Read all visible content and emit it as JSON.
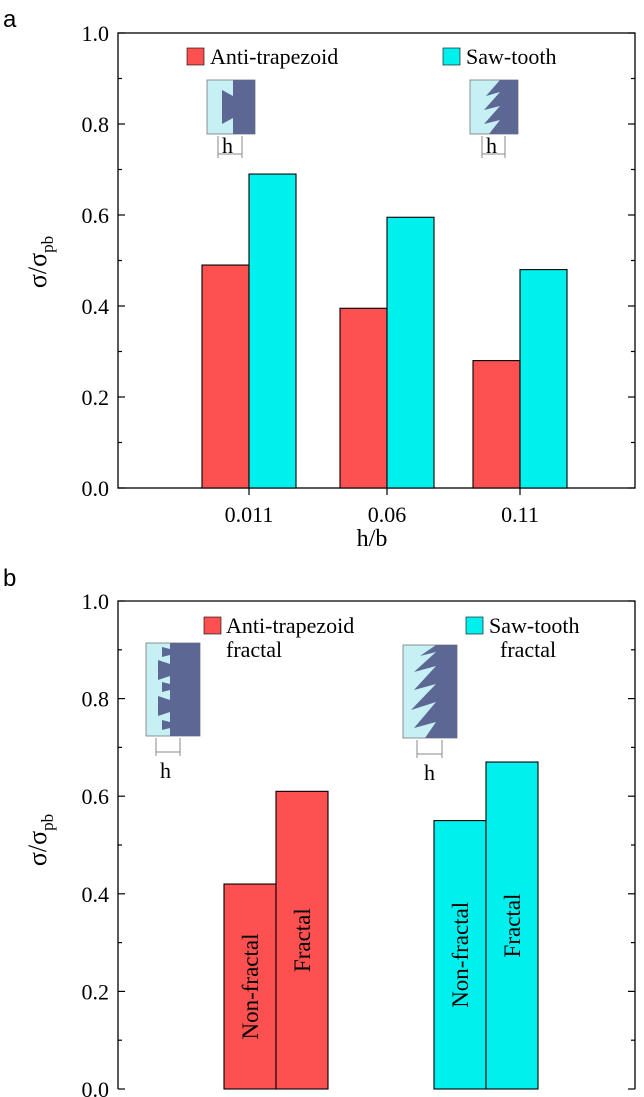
{
  "colors": {
    "anti_trapezoid": "#fd5050",
    "saw_tooth": "#00f0ee",
    "insert_light": "#c6f0f4",
    "insert_dark": "#5c6794"
  },
  "chart_data": [
    {
      "panel": "a",
      "type": "bar",
      "categories": [
        "0.011",
        "0.06",
        "0.11"
      ],
      "series": [
        {
          "name": "Anti-trapezoid",
          "color": "#fd5050",
          "values": [
            0.49,
            0.395,
            0.28
          ]
        },
        {
          "name": "Saw-tooth",
          "color": "#00f0ee",
          "values": [
            0.69,
            0.595,
            0.48
          ]
        }
      ],
      "xlabel": "h/b",
      "ylabel_base": "σ/σ",
      "ylabel_sub": "pb",
      "ylim": [
        0,
        1.0
      ],
      "yticks": [
        "0.0",
        "0.2",
        "0.4",
        "0.6",
        "0.8",
        "1.0"
      ],
      "legend_position": "top",
      "insert_label": "h"
    },
    {
      "panel": "b",
      "type": "bar",
      "groups": [
        {
          "legend_line1": "Anti-trapezoid",
          "legend_line2": "fractal",
          "color": "#fd5050",
          "bars": [
            {
              "label": "Non-fractal",
              "value": 0.42
            },
            {
              "label": "Fractal",
              "value": 0.61
            }
          ]
        },
        {
          "legend_line1": "Saw-tooth",
          "legend_line2": "fractal",
          "color": "#00f0ee",
          "bars": [
            {
              "label": "Non-fractal",
              "value": 0.55
            },
            {
              "label": "Fractal",
              "value": 0.67
            }
          ]
        }
      ],
      "ylabel_base": "σ/σ",
      "ylabel_sub": "pb",
      "ylim": [
        0,
        1.0
      ],
      "yticks": [
        "0.0",
        "0.2",
        "0.4",
        "0.6",
        "0.8",
        "1.0"
      ],
      "legend_position": "top",
      "insert_label": "h"
    }
  ]
}
